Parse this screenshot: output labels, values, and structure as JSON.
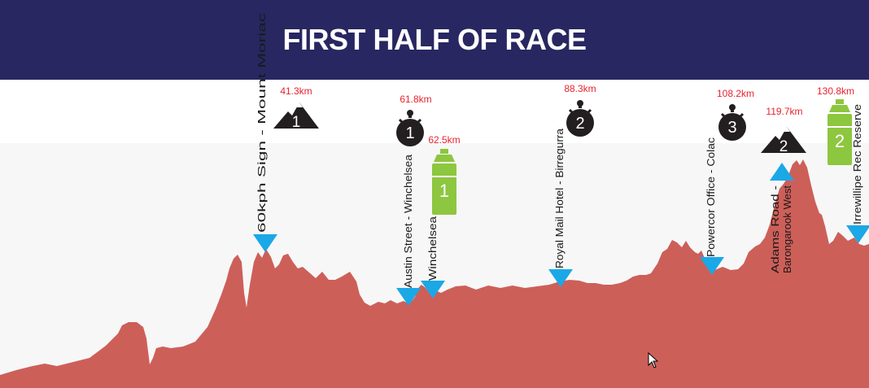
{
  "title": "FIRST HALF OF RACE",
  "colors": {
    "header_bg": "#282761",
    "profile_fill": "#cd5f59",
    "sky_bg": "#f7f7f7",
    "marker_blue": "#1ba8e6",
    "km_red": "#e8242e",
    "mountain": "#231f20",
    "bottle_green": "#8dc63f"
  },
  "chart_data": {
    "type": "area",
    "title": "FIRST HALF OF RACE",
    "xlabel": "",
    "ylabel": "",
    "x_unit": "km",
    "grid": false,
    "axes_shown": false,
    "elevation_profile_relative": {
      "x_km": [
        0,
        10,
        20,
        30,
        38,
        41.3,
        48,
        55,
        61.8,
        62.5,
        70,
        80,
        88.3,
        98,
        108.2,
        114,
        119.7,
        124,
        128,
        130.8,
        133
      ],
      "relative_height": [
        0.02,
        0.05,
        0.1,
        0.22,
        0.48,
        0.55,
        0.45,
        0.3,
        0.27,
        0.28,
        0.34,
        0.36,
        0.38,
        0.45,
        0.42,
        0.6,
        0.78,
        0.85,
        0.7,
        0.6,
        0.58
      ]
    },
    "markers": [
      {
        "km": 41.3,
        "km_label": "41.3km",
        "location": "60kph Sign - Mount Moriac",
        "icon": "mountain-icon",
        "icon_number": "1"
      },
      {
        "km": 61.8,
        "km_label": "61.8km",
        "location": "Austin Street - Winchelsea",
        "icon": "stopwatch-icon",
        "icon_number": "1"
      },
      {
        "km": 62.5,
        "km_label": "62.5km",
        "location": "Winchelsea",
        "icon": "bottle-icon",
        "icon_number": "1"
      },
      {
        "km": 88.3,
        "km_label": "88.3km",
        "location": "Royal Mail Hotel - Birregurra",
        "icon": "stopwatch-icon",
        "icon_number": "2"
      },
      {
        "km": 108.2,
        "km_label": "108.2km",
        "location": "Powercor Office - Colac",
        "icon": "stopwatch-icon",
        "icon_number": "3"
      },
      {
        "km": 119.7,
        "km_label": "119.7km",
        "location": "Adams Road - Barongarook West",
        "icon": "mountain-icon",
        "icon_number": "2"
      },
      {
        "km": 130.8,
        "km_label": "130.8km",
        "location": "Irrewillipe Rec Reserve",
        "icon": "bottle-icon",
        "icon_number": "2"
      }
    ]
  }
}
